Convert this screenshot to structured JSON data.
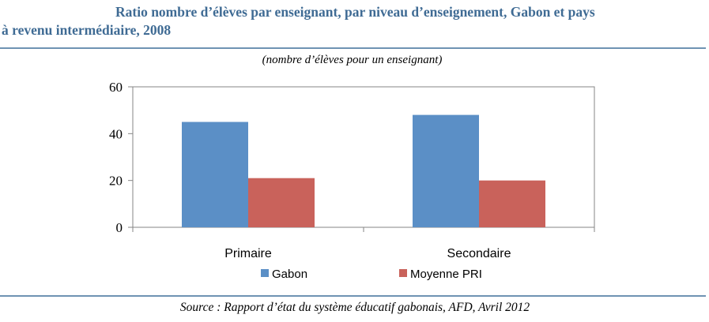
{
  "title": {
    "line1": "Ratio nombre d’élèves par enseignant, par niveau d’enseignement, Gabon et pays",
    "line2": "à revenu intermédiaire, 2008"
  },
  "subtitle": "(nombre d’élèves pour un enseignant)",
  "source": "Source : Rapport d’état du système éducatif gabonais, AFD, Avril 2012",
  "chart_data": {
    "type": "bar",
    "categories": [
      "Primaire",
      "Secondaire"
    ],
    "series": [
      {
        "name": "Gabon",
        "values": [
          45,
          48
        ],
        "color": "#5b8fc6"
      },
      {
        "name": "Moyenne PRI",
        "values": [
          21,
          20
        ],
        "color": "#c9625b"
      }
    ],
    "ylim": [
      0,
      60
    ],
    "yticks": [
      0,
      20,
      40,
      60
    ],
    "grid": false,
    "legend": "bottom"
  }
}
